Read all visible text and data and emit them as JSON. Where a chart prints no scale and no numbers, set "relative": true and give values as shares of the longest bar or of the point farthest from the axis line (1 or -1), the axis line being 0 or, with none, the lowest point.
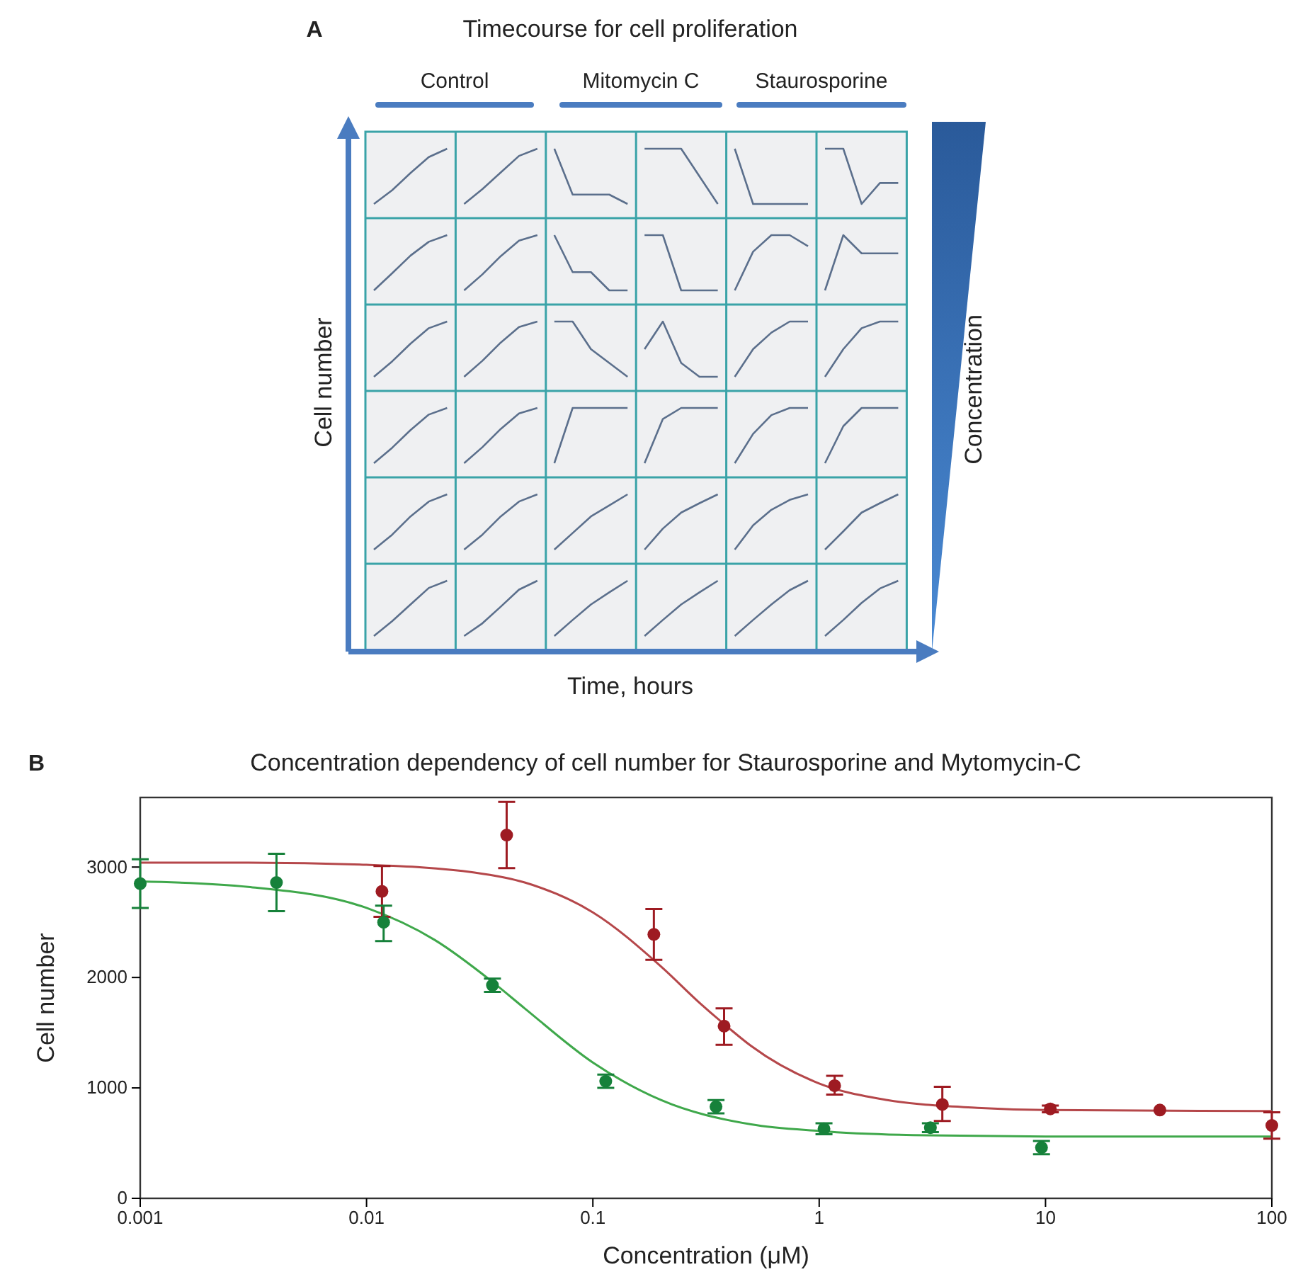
{
  "chart_data": [
    {
      "type": "other",
      "title": "Timecourse for cell proliferation",
      "xlabel": "Time, hours",
      "ylabel": "Cell number",
      "y2label": "Concentration",
      "annotations": [
        "A",
        "Control",
        "Mitomycin C",
        "Staurosporine"
      ]
    },
    {
      "type": "line",
      "relative": true,
      "color": "#5b6f8c",
      "categories": [
        null,
        null,
        null,
        null,
        null
      ],
      "values": [
        0,
        0.25,
        0.56,
        0.85,
        1
      ]
    },
    {
      "type": "line",
      "relative": true,
      "color": "#5b6f8c",
      "categories": [
        null,
        null,
        null,
        null,
        null
      ],
      "values": [
        0,
        0.27,
        0.57,
        0.87,
        1
      ]
    },
    {
      "type": "line",
      "relative": true,
      "color": "#5b6f8c",
      "categories": [
        null,
        null,
        null,
        null,
        null
      ],
      "values": [
        1,
        0.17,
        0.17,
        0.17,
        0
      ]
    },
    {
      "type": "line",
      "relative": true,
      "color": "#5b6f8c",
      "categories": [
        null,
        null,
        null,
        null,
        null
      ],
      "values": [
        1,
        1,
        1,
        0.5,
        0
      ]
    },
    {
      "type": "line",
      "relative": true,
      "color": "#5b6f8c",
      "categories": [
        null,
        null,
        null,
        null,
        null
      ],
      "values": [
        1,
        0,
        0,
        0,
        0
      ]
    },
    {
      "type": "line",
      "relative": true,
      "color": "#5b6f8c",
      "categories": [
        null,
        null,
        null,
        null,
        null
      ],
      "values": [
        1,
        1,
        0,
        0.38,
        0.38
      ]
    },
    {
      "type": "line",
      "relative": true,
      "color": "#5b6f8c",
      "categories": [
        null,
        null,
        null,
        null,
        null
      ],
      "values": [
        0,
        0.31,
        0.63,
        0.88,
        1
      ]
    },
    {
      "type": "line",
      "relative": true,
      "color": "#5b6f8c",
      "categories": [
        null,
        null,
        null,
        null,
        null
      ],
      "values": [
        0,
        0.29,
        0.62,
        0.9,
        1
      ]
    },
    {
      "type": "line",
      "relative": true,
      "color": "#5b6f8c",
      "categories": [
        null,
        null,
        null,
        null,
        null
      ],
      "values": [
        1,
        0.33,
        0.33,
        0,
        0
      ]
    },
    {
      "type": "line",
      "relative": true,
      "color": "#5b6f8c",
      "categories": [
        null,
        null,
        null,
        null,
        null
      ],
      "values": [
        1,
        1,
        0,
        0,
        0
      ]
    },
    {
      "type": "line",
      "relative": true,
      "color": "#5b6f8c",
      "categories": [
        null,
        null,
        null,
        null,
        null
      ],
      "values": [
        0,
        0.7,
        1,
        1,
        0.8
      ]
    },
    {
      "type": "line",
      "relative": true,
      "color": "#5b6f8c",
      "categories": [
        null,
        null,
        null,
        null,
        null
      ],
      "values": [
        0,
        1,
        0.67,
        0.67,
        0.67
      ]
    },
    {
      "type": "line",
      "relative": true,
      "color": "#5b6f8c",
      "categories": [
        null,
        null,
        null,
        null,
        null
      ],
      "values": [
        0,
        0.28,
        0.6,
        0.88,
        1
      ]
    },
    {
      "type": "line",
      "relative": true,
      "color": "#5b6f8c",
      "categories": [
        null,
        null,
        null,
        null,
        null
      ],
      "values": [
        0,
        0.29,
        0.62,
        0.9,
        1
      ]
    },
    {
      "type": "line",
      "relative": true,
      "color": "#5b6f8c",
      "categories": [
        null,
        null,
        null,
        null,
        null
      ],
      "values": [
        1,
        1,
        0.5,
        0.25,
        0
      ]
    },
    {
      "type": "line",
      "relative": true,
      "color": "#5b6f8c",
      "categories": [
        null,
        null,
        null,
        null,
        null
      ],
      "values": [
        0.5,
        1,
        0.25,
        0,
        0
      ]
    },
    {
      "type": "line",
      "relative": true,
      "color": "#5b6f8c",
      "categories": [
        null,
        null,
        null,
        null,
        null
      ],
      "values": [
        0,
        0.5,
        0.8,
        1,
        1
      ]
    },
    {
      "type": "line",
      "relative": true,
      "color": "#5b6f8c",
      "categories": [
        null,
        null,
        null,
        null,
        null
      ],
      "values": [
        0,
        0.5,
        0.88,
        1,
        1
      ]
    },
    {
      "type": "line",
      "relative": true,
      "color": "#5b6f8c",
      "categories": [
        null,
        null,
        null,
        null,
        null
      ],
      "values": [
        0,
        0.28,
        0.6,
        0.88,
        1
      ]
    },
    {
      "type": "line",
      "relative": true,
      "color": "#5b6f8c",
      "categories": [
        null,
        null,
        null,
        null,
        null
      ],
      "values": [
        0,
        0.29,
        0.62,
        0.9,
        1
      ]
    },
    {
      "type": "line",
      "relative": true,
      "color": "#5b6f8c",
      "categories": [
        null,
        null,
        null,
        null,
        null
      ],
      "values": [
        0,
        1,
        1,
        1,
        1
      ]
    },
    {
      "type": "line",
      "relative": true,
      "color": "#5b6f8c",
      "categories": [
        null,
        null,
        null,
        null,
        null
      ],
      "values": [
        0,
        0.8,
        1,
        1,
        1
      ]
    },
    {
      "type": "line",
      "relative": true,
      "color": "#5b6f8c",
      "categories": [
        null,
        null,
        null,
        null,
        null
      ],
      "values": [
        0,
        0.53,
        0.87,
        1,
        1
      ]
    },
    {
      "type": "line",
      "relative": true,
      "color": "#5b6f8c",
      "categories": [
        null,
        null,
        null,
        null,
        null
      ],
      "values": [
        0,
        0.67,
        1,
        1,
        1
      ]
    },
    {
      "type": "line",
      "relative": true,
      "color": "#5b6f8c",
      "categories": [
        null,
        null,
        null,
        null,
        null
      ],
      "values": [
        0,
        0.27,
        0.6,
        0.87,
        1
      ]
    },
    {
      "type": "line",
      "relative": true,
      "color": "#5b6f8c",
      "categories": [
        null,
        null,
        null,
        null,
        null
      ],
      "values": [
        0,
        0.27,
        0.6,
        0.87,
        1
      ]
    },
    {
      "type": "line",
      "relative": true,
      "color": "#5b6f8c",
      "categories": [
        null,
        null,
        null,
        null,
        null
      ],
      "values": [
        0,
        0.3,
        0.6,
        0.8,
        1
      ]
    },
    {
      "type": "line",
      "relative": true,
      "color": "#5b6f8c",
      "categories": [
        null,
        null,
        null,
        null,
        null
      ],
      "values": [
        0,
        0.38,
        0.67,
        0.84,
        1
      ]
    },
    {
      "type": "line",
      "relative": true,
      "color": "#5b6f8c",
      "categories": [
        null,
        null,
        null,
        null,
        null
      ],
      "values": [
        0,
        0.44,
        0.72,
        0.9,
        1
      ]
    },
    {
      "type": "line",
      "relative": true,
      "color": "#5b6f8c",
      "categories": [
        null,
        null,
        null,
        null,
        null
      ],
      "values": [
        0,
        0.33,
        0.67,
        0.84,
        1
      ]
    },
    {
      "type": "line",
      "relative": true,
      "color": "#5b6f8c",
      "categories": [
        null,
        null,
        null,
        null,
        null
      ],
      "values": [
        0,
        0.27,
        0.57,
        0.87,
        1
      ]
    },
    {
      "type": "line",
      "relative": true,
      "color": "#5b6f8c",
      "categories": [
        null,
        null,
        null,
        null,
        null
      ],
      "values": [
        0,
        0.23,
        0.53,
        0.84,
        1
      ]
    },
    {
      "type": "line",
      "relative": true,
      "color": "#5b6f8c",
      "categories": [
        null,
        null,
        null,
        null,
        null
      ],
      "values": [
        0,
        0.29,
        0.57,
        0.79,
        1
      ]
    },
    {
      "type": "line",
      "relative": true,
      "color": "#5b6f8c",
      "categories": [
        null,
        null,
        null,
        null,
        null
      ],
      "values": [
        0,
        0.29,
        0.57,
        0.79,
        1
      ]
    },
    {
      "type": "line",
      "relative": true,
      "color": "#5b6f8c",
      "categories": [
        null,
        null,
        null,
        null,
        null
      ],
      "values": [
        0,
        0.29,
        0.57,
        0.83,
        1
      ]
    },
    {
      "type": "line",
      "relative": true,
      "color": "#5b6f8c",
      "categories": [
        null,
        null,
        null,
        null,
        null
      ],
      "values": [
        0,
        0.29,
        0.6,
        0.86,
        1
      ]
    },
    {
      "type": "scatter",
      "title": "Concentration dependency of cell number for Staurosporine and Mytomycin-C",
      "xlabel": "Concentration (μM)",
      "ylabel": "Cell number",
      "annotations": [
        "B"
      ],
      "log": "x",
      "xlim": [
        0.001,
        100
      ],
      "ylim": [
        0,
        3630
      ],
      "xticks": [
        0.001,
        0.01,
        0.1,
        1,
        10,
        100
      ],
      "yticks": [
        0,
        1000,
        2000,
        3000
      ],
      "series": [
        {
          "type": "line",
          "marker": "none",
          "color": "#b5474a",
          "x": [
            0.001,
            0.003,
            0.01,
            0.03,
            0.05,
            0.1,
            0.2,
            0.3,
            0.4,
            0.5,
            1,
            2,
            5,
            10,
            100
          ],
          "values": [
            3040,
            3040,
            3020,
            2950,
            2860,
            2590,
            2100,
            1760,
            1540,
            1380,
            1040,
            890,
            820,
            800,
            790
          ]
        },
        {
          "type": "line",
          "marker": "none",
          "color": "#3fa84b",
          "x": [
            0.001,
            0.003,
            0.01,
            0.02,
            0.036,
            0.05,
            0.1,
            0.2,
            0.5,
            1,
            3,
            10,
            100
          ],
          "values": [
            2870,
            2820,
            2630,
            2340,
            1960,
            1720,
            1230,
            890,
            670,
            610,
            570,
            560,
            560
          ]
        },
        {
          "type": "scatter",
          "marker": "circle",
          "color": "#9e1b22",
          "x": [
            0.0117,
            0.0416,
            0.186,
            0.38,
            1.17,
            3.5,
            10.5,
            32,
            100
          ],
          "values": [
            2780,
            3290,
            2390,
            1560,
            1020,
            850,
            810,
            800,
            660
          ],
          "errors": [
            [
              2550,
              3010
            ],
            [
              2990,
              3590
            ],
            [
              2160,
              2620
            ],
            [
              1390,
              1720
            ],
            [
              940,
              1110
            ],
            [
              700,
              1010
            ],
            [
              780,
              840
            ],
            null,
            [
              540,
              780
            ]
          ]
        },
        {
          "type": "scatter",
          "marker": "circle",
          "color": "#16813a",
          "x": [
            0.001,
            0.004,
            0.0119,
            0.036,
            0.114,
            0.35,
            1.05,
            3.1,
            9.6
          ],
          "values": [
            2850,
            2860,
            2500,
            1930,
            1060,
            830,
            630,
            640,
            460
          ],
          "errors": [
            [
              2630,
              3070
            ],
            [
              2600,
              3120
            ],
            [
              2330,
              2650
            ],
            [
              1870,
              1990
            ],
            [
              1000,
              1120
            ],
            [
              770,
              890
            ],
            [
              580,
              680
            ],
            [
              600,
              680
            ],
            [
              400,
              520
            ]
          ]
        }
      ]
    }
  ]
}
